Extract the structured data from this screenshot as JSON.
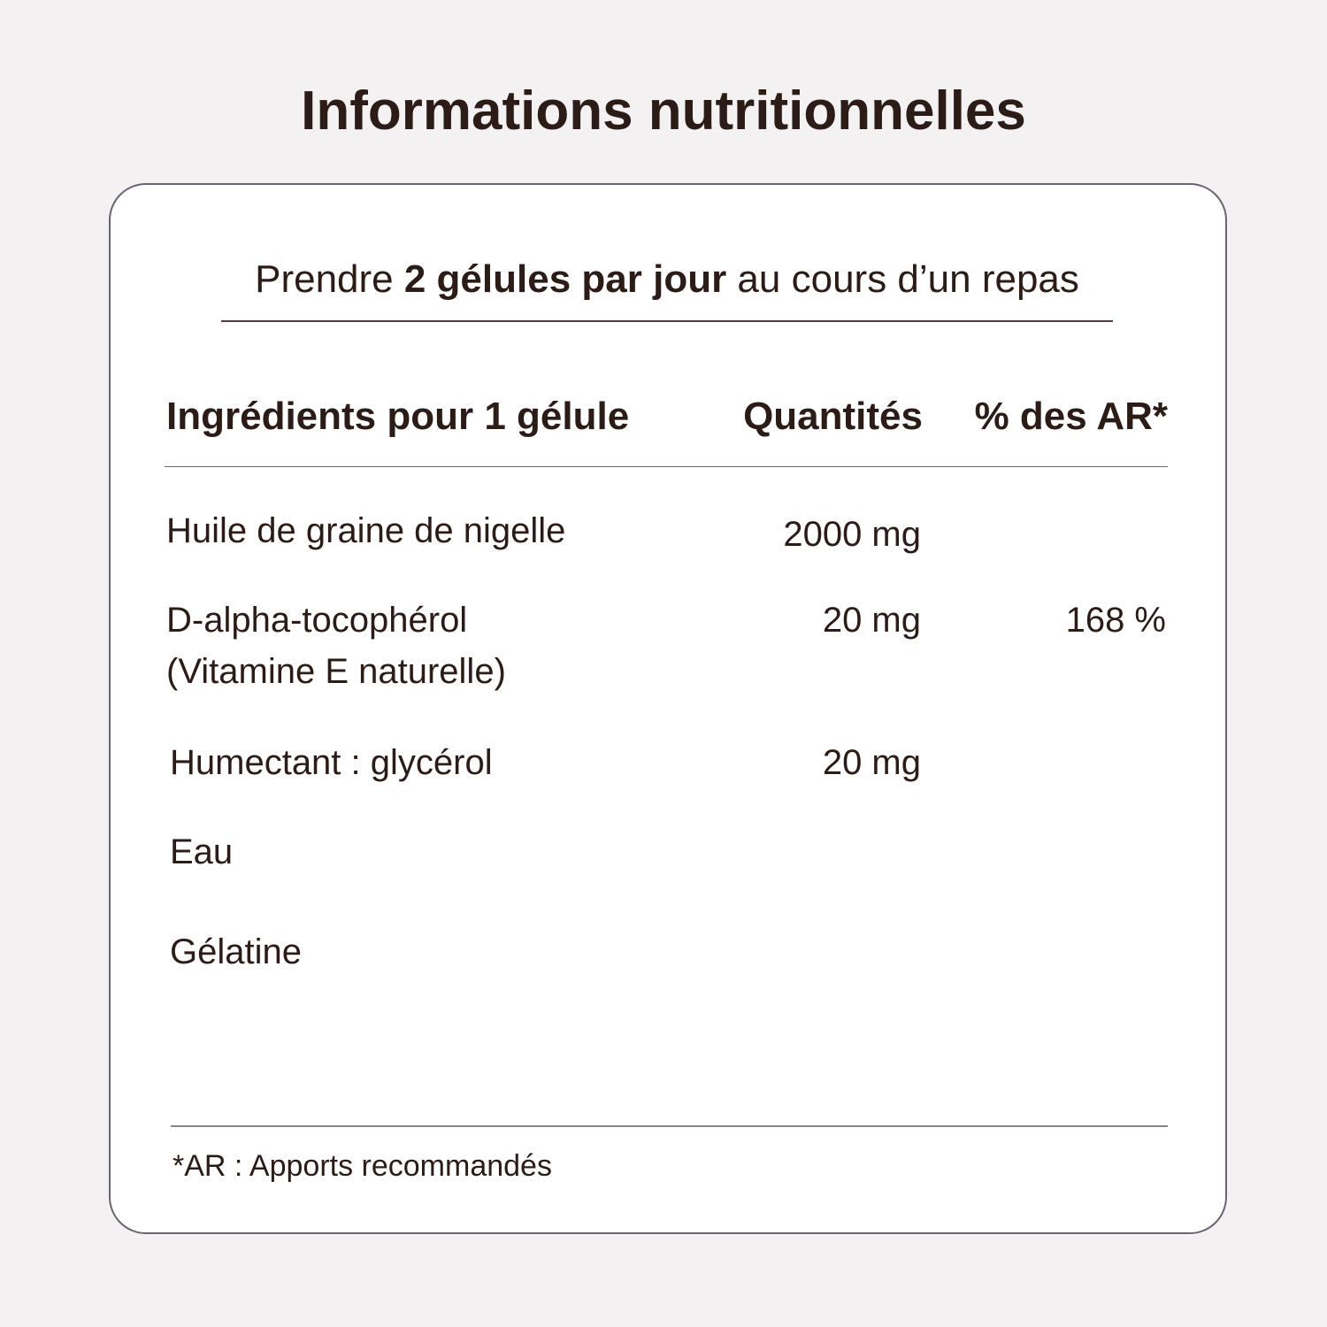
{
  "title": "Informations nutritionnelles",
  "instruction": {
    "before": "Prendre ",
    "bold": "2 gélules par jour",
    "after": " au cours d’un repas"
  },
  "table": {
    "headers": [
      "Ingrédients pour 1 gélule",
      "Quantités",
      "% des AR*"
    ],
    "rows": [
      {
        "ingredient": "Huile de graine de nigelle",
        "ingredient2": "",
        "quantity": "2000 mg",
        "ar": ""
      },
      {
        "ingredient": "D-alpha-tocophérol",
        "ingredient2": "(Vitamine E naturelle)",
        "quantity": "20 mg",
        "ar": "168 %"
      },
      {
        "ingredient": "Humectant : glycérol",
        "ingredient2": "",
        "quantity": "20 mg",
        "ar": ""
      },
      {
        "ingredient": "Eau",
        "ingredient2": "",
        "quantity": "",
        "ar": ""
      },
      {
        "ingredient": "Gélatine",
        "ingredient2": "",
        "quantity": "",
        "ar": ""
      }
    ]
  },
  "footnote": "*AR : Apports recommandés"
}
